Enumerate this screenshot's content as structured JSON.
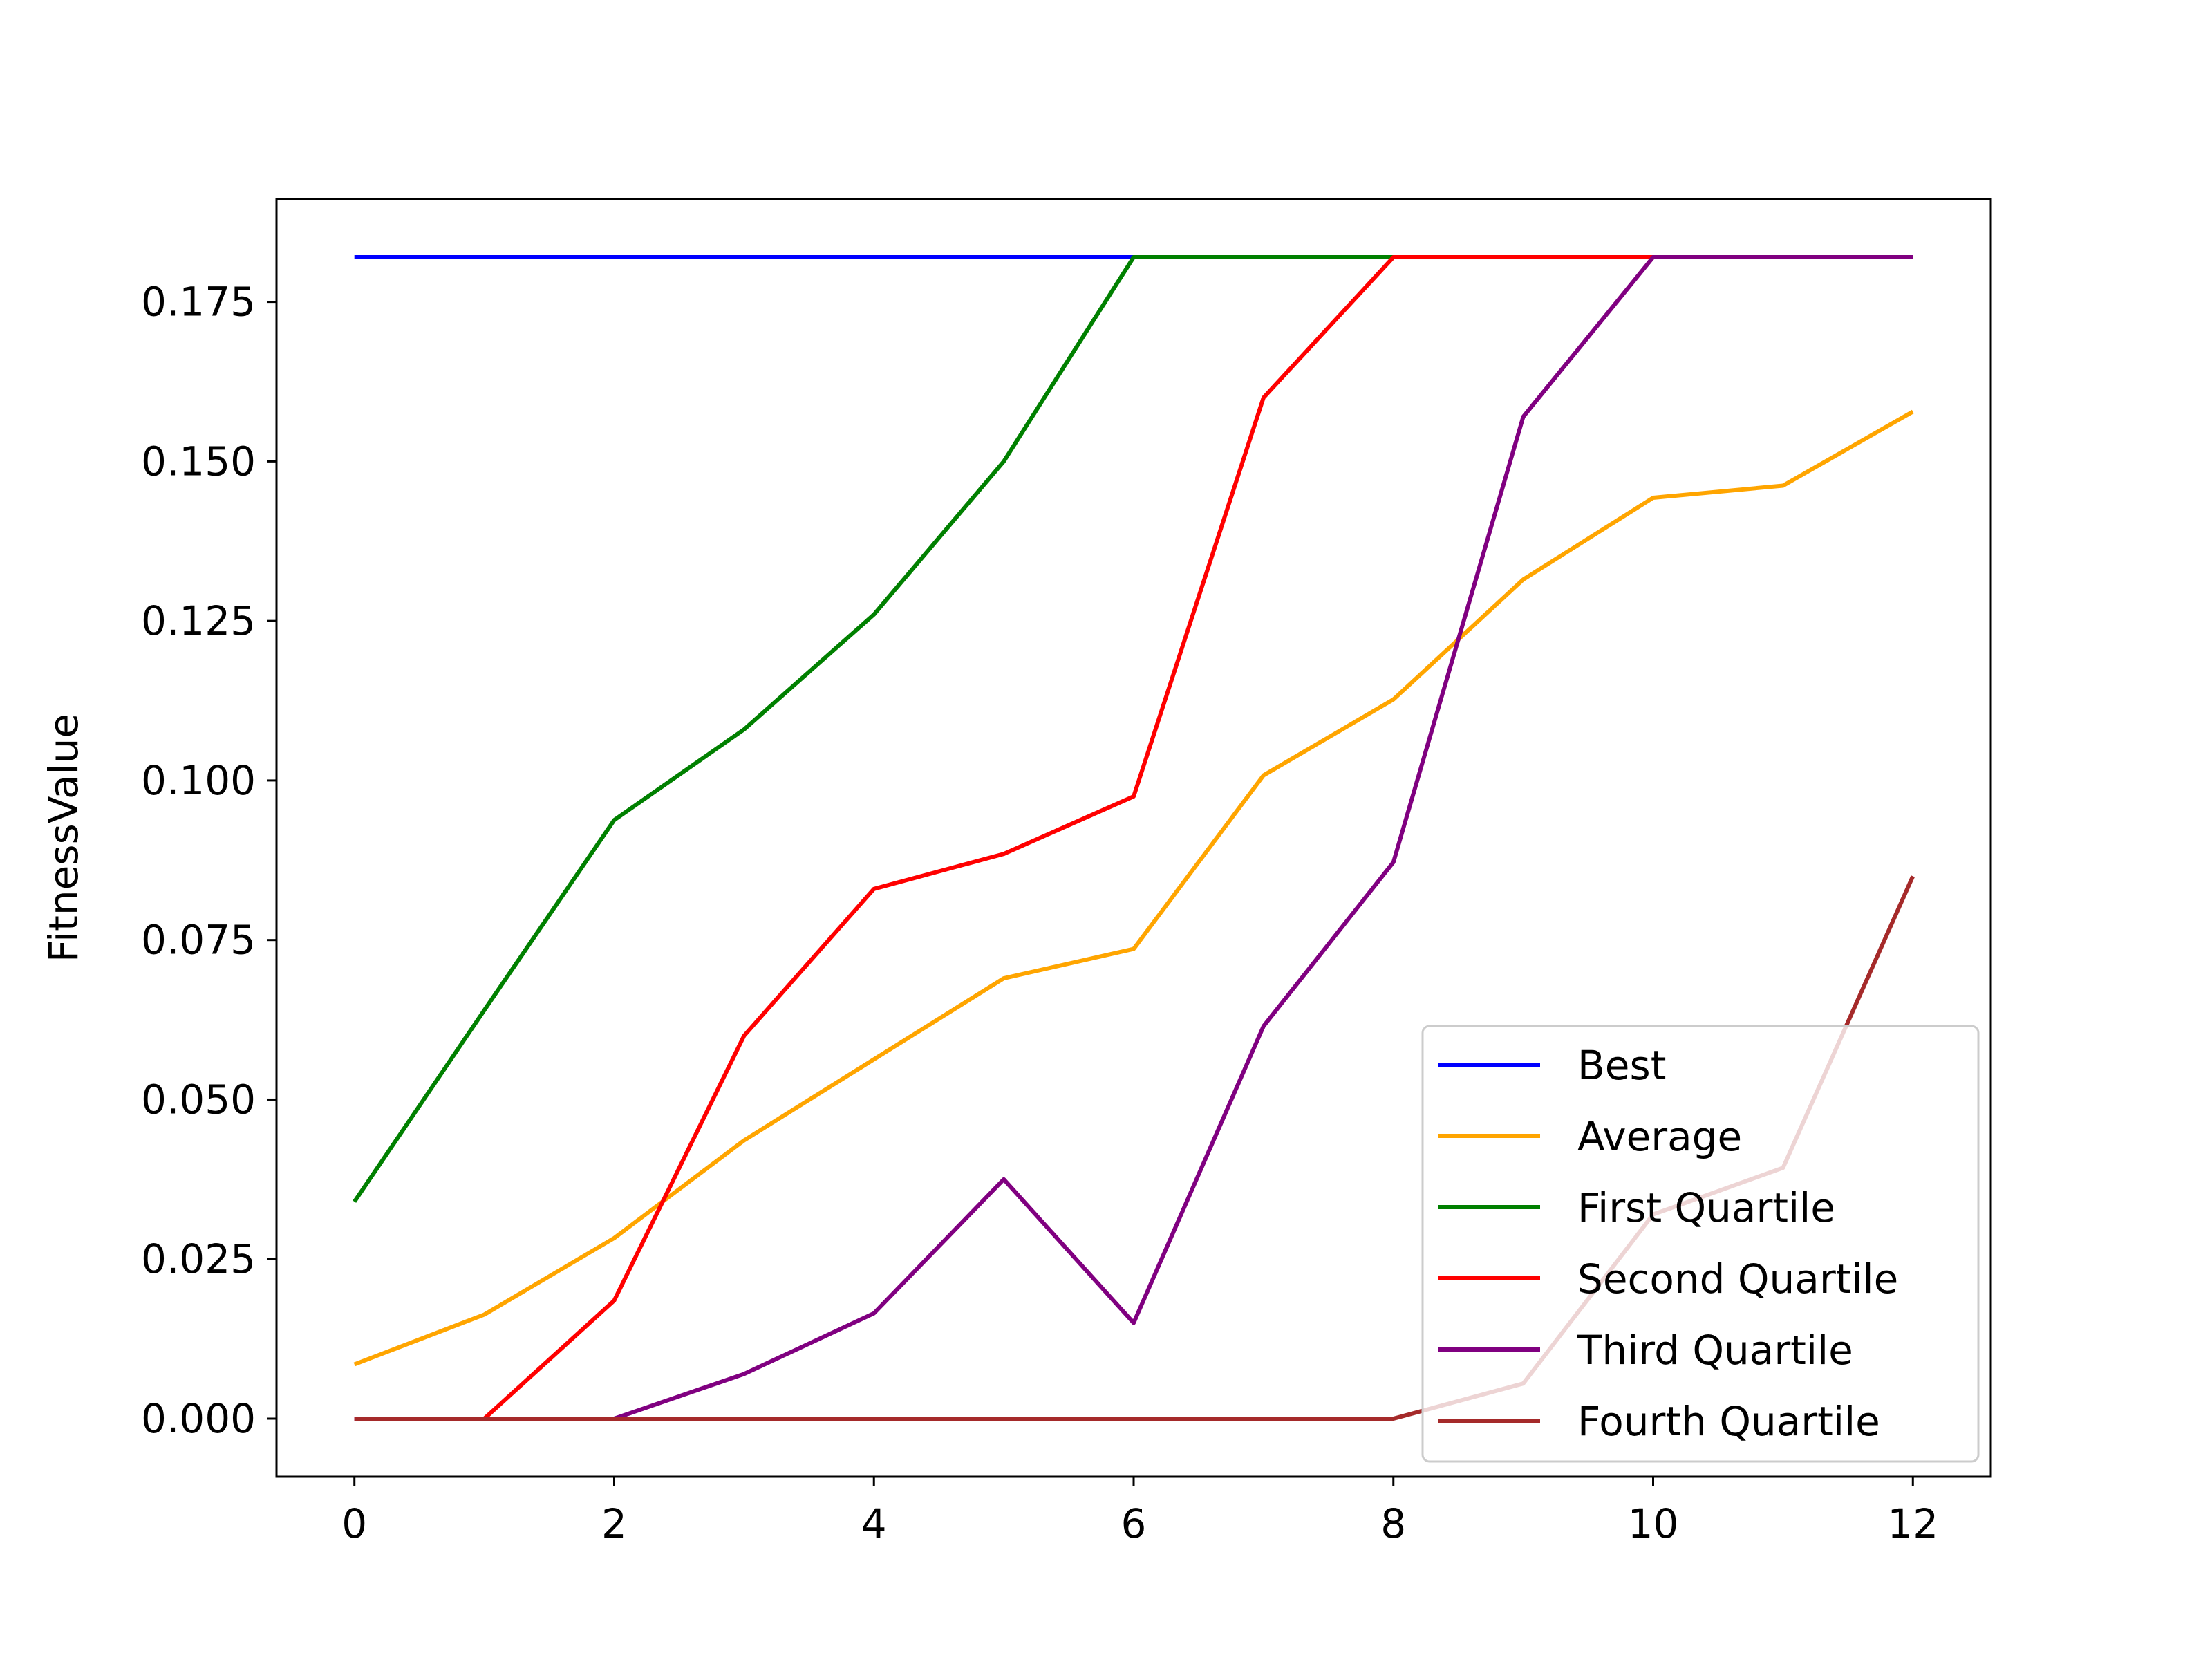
{
  "chart_data": {
    "type": "line",
    "title": "",
    "xlabel": "",
    "ylabel": "FitnessValue",
    "xlim": [
      -0.6,
      12.6
    ],
    "ylim": [
      -0.0091,
      0.1911
    ],
    "x_ticks": [
      0,
      2,
      4,
      6,
      8,
      10,
      12
    ],
    "y_ticks": [
      0.0,
      0.025,
      0.05,
      0.075,
      0.1,
      0.125,
      0.15,
      0.175
    ],
    "x_tick_labels": [
      "0",
      "2",
      "4",
      "6",
      "8",
      "10",
      "12"
    ],
    "y_tick_labels": [
      "0.000",
      "0.025",
      "0.050",
      "0.075",
      "0.100",
      "0.125",
      "0.150",
      "0.175"
    ],
    "grid": false,
    "legend_placement": "lower-right",
    "x": [
      0,
      1,
      2,
      3,
      4,
      5,
      6,
      7,
      8,
      9,
      10,
      11,
      12
    ],
    "series": [
      {
        "name": "Best",
        "color": "#0000ff",
        "values": [
          0.182,
          0.182,
          0.182,
          0.182,
          0.182,
          0.182,
          0.182,
          0.182,
          0.182,
          0.182,
          0.182,
          0.182,
          0.182
        ]
      },
      {
        "name": "Average",
        "color": "#ffa500",
        "values": [
          0.0085,
          0.0163,
          0.0283,
          0.0436,
          0.0563,
          0.069,
          0.0736,
          0.1008,
          0.1127,
          0.1315,
          0.1443,
          0.1462,
          0.1578
        ]
      },
      {
        "name": "First Quartile",
        "color": "#008000",
        "values": [
          0.034,
          0.064,
          0.0938,
          0.108,
          0.126,
          0.15,
          0.182,
          0.182,
          0.182,
          0.182,
          0.182,
          0.182,
          0.182
        ]
      },
      {
        "name": "Second Quartile",
        "color": "#ff0000",
        "values": [
          0.0,
          0.0,
          0.0185,
          0.06,
          0.083,
          0.0885,
          0.0975,
          0.16,
          0.182,
          0.182,
          0.182,
          0.182,
          0.182
        ]
      },
      {
        "name": "Third Quartile",
        "color": "#800080",
        "values": [
          0.0,
          0.0,
          0.0,
          0.007,
          0.0165,
          0.0375,
          0.015,
          0.0615,
          0.0872,
          0.157,
          0.182,
          0.182,
          0.182
        ]
      },
      {
        "name": "Fourth Quartile",
        "color": "#a52a2a",
        "values": [
          0.0,
          0.0,
          0.0,
          0.0,
          0.0,
          0.0,
          0.0,
          0.0,
          0.0,
          0.0055,
          0.032,
          0.0393,
          0.085
        ]
      }
    ]
  }
}
